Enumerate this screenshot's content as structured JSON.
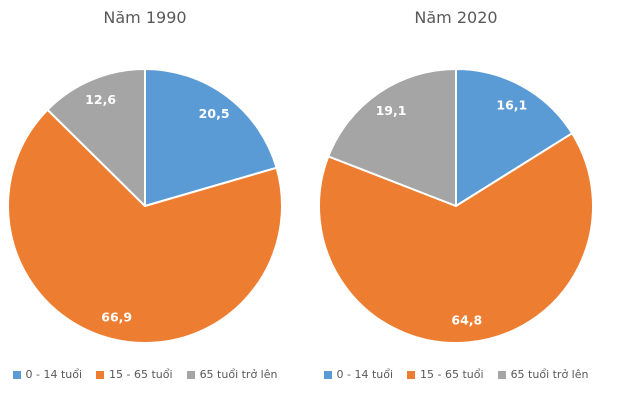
{
  "colors": {
    "blue": "#5B9BD5",
    "orange": "#ED7D31",
    "gray": "#A5A5A5",
    "title_text": "#595959",
    "legend_text": "#595959",
    "slice_label_text": "#FFFFFF",
    "background": "#FFFFFF"
  },
  "chart_data": [
    {
      "type": "pie",
      "title": "Năm 1990",
      "start_angle_deg": 0,
      "direction": "clockwise",
      "legend_position": "bottom",
      "slices": [
        {
          "label": "0 - 14 tuổi",
          "value": 20.5,
          "display": "20,5",
          "color_key": "blue"
        },
        {
          "label": "15 - 65 tuổi",
          "value": 66.9,
          "display": "66,9",
          "color_key": "orange"
        },
        {
          "label": "65 tuổi trở lên",
          "value": 12.6,
          "display": "12,6",
          "color_key": "gray"
        }
      ]
    },
    {
      "type": "pie",
      "title": "Năm 2020",
      "start_angle_deg": 0,
      "direction": "clockwise",
      "legend_position": "bottom",
      "slices": [
        {
          "label": "0 - 14 tuổi",
          "value": 16.1,
          "display": "16,1",
          "color_key": "blue"
        },
        {
          "label": "15 - 65 tuổi",
          "value": 64.8,
          "display": "64,8",
          "color_key": "orange"
        },
        {
          "label": "65 tuổi trở lên",
          "value": 19.1,
          "display": "19,1",
          "color_key": "gray"
        }
      ]
    }
  ]
}
